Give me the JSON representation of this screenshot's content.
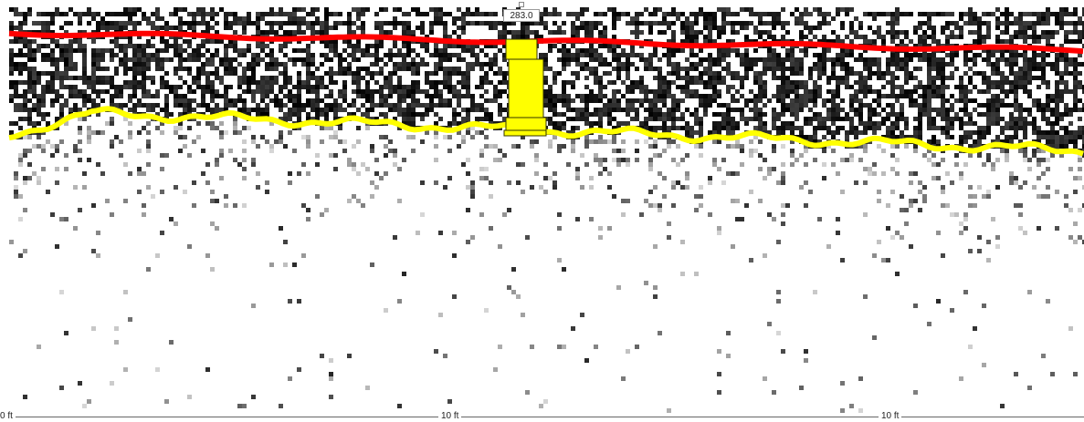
{
  "radargram": {
    "surface_line_color": "#ff0000",
    "horizon_line_color": "#ffff00",
    "background_color": "#ffffff",
    "signal_color": "#000000"
  },
  "cursor": {
    "value_label": "283.0",
    "marker_color": "#ffff00",
    "marker_border": "#333300"
  },
  "scale_bar": {
    "ticks": [
      "0 ft",
      "10 ft",
      "10 ft"
    ]
  }
}
